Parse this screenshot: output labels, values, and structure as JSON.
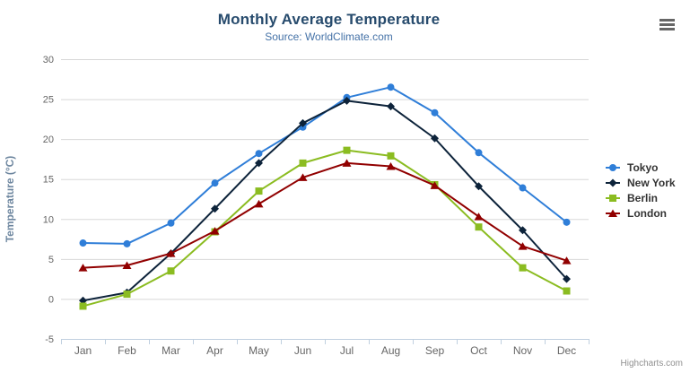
{
  "chart": {
    "credits": "Highcharts.com",
    "context_menu_tooltip": "Chart context menu"
  },
  "colors": {
    "title": "#274b6d",
    "subtitle": "#4572a7",
    "y_axis_title": "#6d869f",
    "axis_label": "#666666",
    "gridline": "#d8d8d8",
    "axis_line": "#c0d0e0",
    "legend_text": "#333333",
    "credits": "#909090",
    "menu_icon": "#666666",
    "background": "#ffffff"
  },
  "chart_data": {
    "type": "line",
    "title": "Monthly Average Temperature",
    "subtitle": "Source: WorldClimate.com",
    "xlabel": "",
    "ylabel": "Temperature (°C)",
    "categories": [
      "Jan",
      "Feb",
      "Mar",
      "Apr",
      "May",
      "Jun",
      "Jul",
      "Aug",
      "Sep",
      "Oct",
      "Nov",
      "Dec"
    ],
    "ylim": [
      -5,
      30
    ],
    "y_tick_interval": 5,
    "grid": "horizontal-only",
    "legend_position": "right",
    "series": [
      {
        "name": "Tokyo",
        "color": "#2f7ed8",
        "marker": "circle",
        "values": [
          7.0,
          6.9,
          9.5,
          14.5,
          18.2,
          21.5,
          25.2,
          26.5,
          23.3,
          18.3,
          13.9,
          9.6
        ]
      },
      {
        "name": "New York",
        "color": "#0d233a",
        "marker": "diamond",
        "values": [
          -0.2,
          0.8,
          5.7,
          11.3,
          17.0,
          22.0,
          24.8,
          24.1,
          20.1,
          14.1,
          8.6,
          2.5
        ]
      },
      {
        "name": "Berlin",
        "color": "#8bbc21",
        "marker": "square",
        "values": [
          -0.9,
          0.6,
          3.5,
          8.4,
          13.5,
          17.0,
          18.6,
          17.9,
          14.3,
          9.0,
          3.9,
          1.0
        ]
      },
      {
        "name": "London",
        "color": "#910000",
        "marker": "triangle",
        "values": [
          3.9,
          4.2,
          5.7,
          8.5,
          11.9,
          15.2,
          17.0,
          16.6,
          14.2,
          10.3,
          6.6,
          4.8
        ]
      }
    ]
  }
}
